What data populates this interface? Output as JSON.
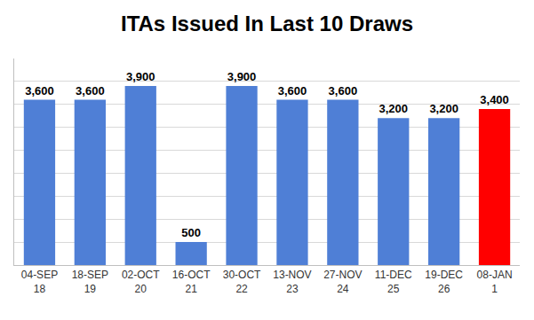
{
  "chart_data": {
    "type": "bar",
    "title": "ITAs Issued In Last 10 Draws",
    "categories": [
      [
        "04-SEP",
        "18"
      ],
      [
        "18-SEP",
        "19"
      ],
      [
        "02-OCT",
        "20"
      ],
      [
        "16-OCT",
        "21"
      ],
      [
        "30-OCT",
        "22"
      ],
      [
        "13-NOV",
        "23"
      ],
      [
        "27-NOV",
        "24"
      ],
      [
        "11-DEC",
        "25"
      ],
      [
        "19-DEC",
        "26"
      ],
      [
        "08-JAN",
        "1"
      ]
    ],
    "values": [
      3600,
      3600,
      3900,
      500,
      3900,
      3600,
      3600,
      3200,
      3200,
      3400
    ],
    "value_labels": [
      "3,600",
      "3,600",
      "3,900",
      "500",
      "3,900",
      "3,600",
      "3,600",
      "3,200",
      "3,200",
      "3,400"
    ],
    "colors": [
      "#4f7fd6",
      "#4f7fd6",
      "#4f7fd6",
      "#4f7fd6",
      "#4f7fd6",
      "#4f7fd6",
      "#4f7fd6",
      "#4f7fd6",
      "#4f7fd6",
      "#ff0000"
    ],
    "ylim": [
      0,
      4500
    ],
    "yticks": [
      0,
      500,
      1000,
      1500,
      2000,
      2500,
      3000,
      3500,
      4000,
      4500
    ],
    "grid": true,
    "data_labels": true,
    "tick_labels": "x"
  }
}
